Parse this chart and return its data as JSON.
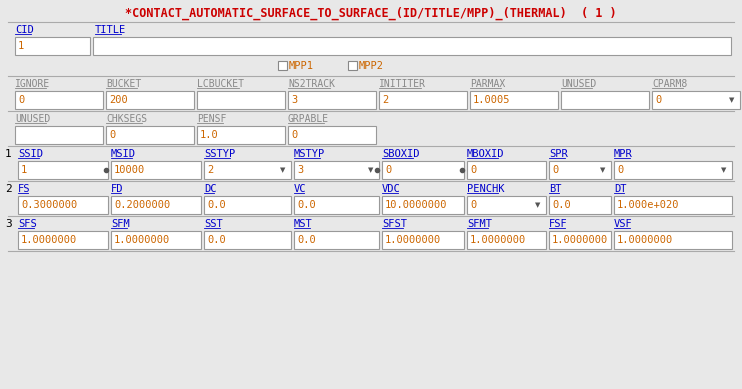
{
  "title": "*CONTACT_AUTOMATIC_SURFACE_TO_SURFACE_(ID/TITLE/MPP)_(THERMAL)  ( 1 )",
  "title_color": "#cc0000",
  "bg_color": "#e8e8e8",
  "field_bg": "#ffffff",
  "label_color": "#0000cc",
  "value_color": "#cc6600",
  "gray_label_color": "#888888",
  "line_color": "#aaaaaa",
  "row1_labels": [
    "CID",
    "TITLE"
  ],
  "row2_labels": [
    "IGNORE",
    "BUCKET",
    "LCBUCKET",
    "NS2TRACK",
    "INITITER",
    "PARMAX",
    "UNUSED",
    "CPARM8"
  ],
  "row2_values": [
    "0",
    "200",
    "",
    "3",
    "2",
    "1.0005",
    "",
    "0"
  ],
  "row3_labels": [
    "UNUSED",
    "CHKSEGS",
    "PENSF",
    "GRPABLE"
  ],
  "row3_values": [
    "",
    "0",
    "1.0",
    "0"
  ],
  "row4_labels": [
    "SSID",
    "MSID",
    "SSTYP",
    "MSTYP",
    "SBOXID",
    "MBOXID",
    "SPR",
    "MPR"
  ],
  "row4_values": [
    "1",
    "10000",
    "2",
    "3",
    "0",
    "0",
    "0",
    "0"
  ],
  "row4_dots": [
    false,
    true,
    false,
    false,
    true,
    true,
    false,
    false
  ],
  "row4_dropdowns": [
    false,
    false,
    true,
    true,
    false,
    false,
    true,
    true
  ],
  "row5_labels": [
    "FS",
    "FD",
    "DC",
    "VC",
    "VDC",
    "PENCHK",
    "BT",
    "DT"
  ],
  "row5_values": [
    "0.3000000",
    "0.2000000",
    "0.0",
    "0.0",
    "10.0000000",
    "0",
    "0.0",
    "1.000e+020"
  ],
  "row5_dropdowns": [
    false,
    false,
    false,
    false,
    false,
    true,
    false,
    false
  ],
  "row6_labels": [
    "SFS",
    "SFM",
    "SST",
    "MST",
    "SFST",
    "SFMT",
    "FSF",
    "VSF"
  ],
  "row6_values": [
    "1.0000000",
    "1.0000000",
    "0.0",
    "0.0",
    "1.0000000",
    "1.0000000",
    "1.0000000",
    "1.0000000"
  ]
}
